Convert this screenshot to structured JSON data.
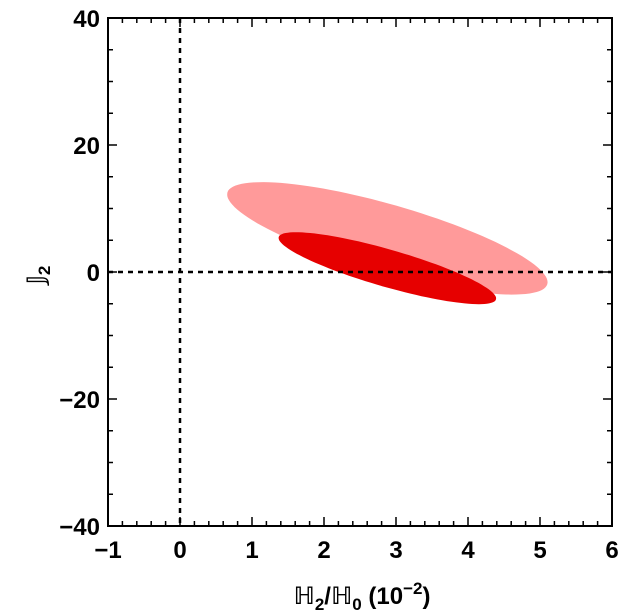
{
  "chart_data": {
    "type": "contour",
    "x_axis": {
      "label_main": "ℍ",
      "label_sub1": "2",
      "label_mid": "/ℍ",
      "label_sub2": "0",
      "label_tail": " (10",
      "label_sup": "−2",
      "label_close": ")",
      "range": [
        -1,
        6
      ],
      "ticks": [
        -1,
        0,
        1,
        2,
        3,
        4,
        5,
        6
      ],
      "tick_labels": [
        "−1",
        "0",
        "1",
        "2",
        "3",
        "4",
        "5",
        "6"
      ]
    },
    "y_axis": {
      "label_main": "𝕁",
      "label_sub": "2",
      "range": [
        -40,
        40
      ],
      "ticks": [
        -40,
        -20,
        0,
        20,
        40
      ],
      "tick_labels": [
        "−40",
        "−20",
        "0",
        "20",
        "40"
      ]
    },
    "reference_lines": {
      "x": 0,
      "y": 0,
      "style": "dotted"
    },
    "regions": [
      {
        "level": "outer",
        "color": "#ff9a9a",
        "center": [
          2.88,
          5.3
        ],
        "major_half_length": 26.2,
        "minor_half_width": 0.47,
        "tilt_deg": -74
      },
      {
        "level": "inner",
        "color": "#e60000",
        "center": [
          2.88,
          0.6
        ],
        "major_half_length": 17.8,
        "minor_half_width": 0.26,
        "tilt_deg": -74
      }
    ],
    "colors": {
      "outer": "#ff9a9a",
      "inner": "#e60000",
      "frame": "#000000"
    }
  }
}
